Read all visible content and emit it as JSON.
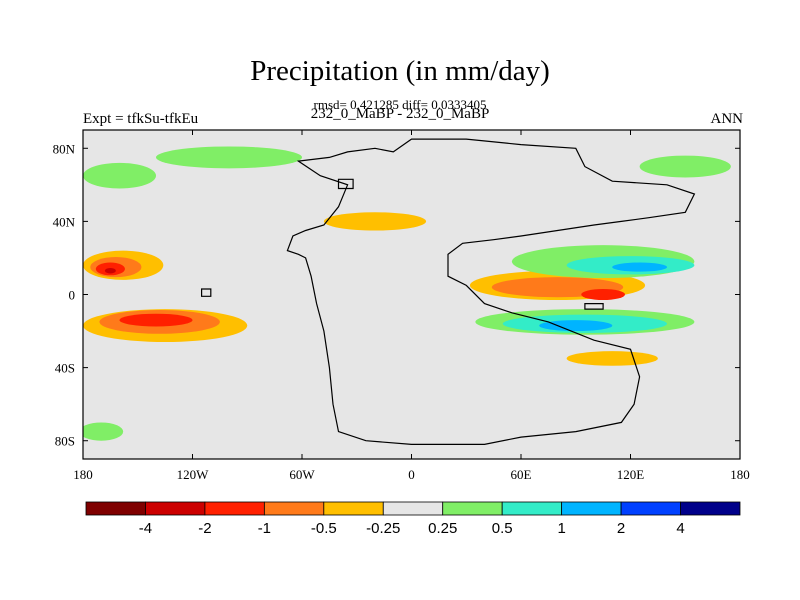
{
  "title": "Precipitation (in mm/day)",
  "stats": "rmsd= 0.421285 diff= 0.0333405",
  "subtitle": "232_0_MaBP - 232_0_MaBP",
  "left_label": "Expt = tfkSu-tfkEu",
  "right_label": "ANN",
  "colors": {
    "background_field": "#e6e6e6",
    "continent_outline": "#000000"
  },
  "chart_data": {
    "type": "heatmap",
    "projection": "cylindrical equidistant",
    "xlim": [
      -180,
      180
    ],
    "ylim": [
      -90,
      90
    ],
    "x_ticks": [
      {
        "value": -180,
        "label": "180"
      },
      {
        "value": -120,
        "label": "120W"
      },
      {
        "value": -60,
        "label": "60W"
      },
      {
        "value": 0,
        "label": "0"
      },
      {
        "value": 60,
        "label": "60E"
      },
      {
        "value": 120,
        "label": "120E"
      },
      {
        "value": 180,
        "label": "180"
      }
    ],
    "y_ticks": [
      {
        "value": 80,
        "label": "80N"
      },
      {
        "value": 40,
        "label": "40N"
      },
      {
        "value": 0,
        "label": "0"
      },
      {
        "value": -40,
        "label": "40S"
      },
      {
        "value": -80,
        "label": "80S"
      }
    ],
    "colorbar": {
      "levels": [
        "-4",
        "-2",
        "-1",
        "-0.5",
        "-0.25",
        "0.25",
        "0.5",
        "1",
        "2",
        "4"
      ],
      "colors": [
        "#7f0000",
        "#cc0000",
        "#ff2000",
        "#ff7a1a",
        "#ffbf00",
        "#e6e6e6",
        "#80ee66",
        "#33ecc8",
        "#00b4ff",
        "#0040ff",
        "#00008a"
      ]
    },
    "regions": [
      {
        "bin": 4,
        "lon": -158,
        "lat": 16,
        "rlon": 22,
        "rlat": 8
      },
      {
        "bin": 3,
        "lon": -162,
        "lat": 15,
        "rlon": 14,
        "rlat": 5.5
      },
      {
        "bin": 2,
        "lon": -165,
        "lat": 14,
        "rlon": 8,
        "rlat": 3.5
      },
      {
        "bin": 1,
        "lon": -165,
        "lat": 13,
        "rlon": 3,
        "rlat": 1.5
      },
      {
        "bin": 4,
        "lon": -135,
        "lat": -17,
        "rlon": 45,
        "rlat": 9
      },
      {
        "bin": 3,
        "lon": -138,
        "lat": -15,
        "rlon": 33,
        "rlat": 6.5
      },
      {
        "bin": 2,
        "lon": -140,
        "lat": -14,
        "rlon": 20,
        "rlat": 3.5
      },
      {
        "bin": 4,
        "lon": 80,
        "lat": 5,
        "rlon": 48,
        "rlat": 8
      },
      {
        "bin": 3,
        "lon": 80,
        "lat": 4,
        "rlon": 36,
        "rlat": 5.5
      },
      {
        "bin": 2,
        "lon": 105,
        "lat": 0,
        "rlon": 12,
        "rlat": 3
      },
      {
        "bin": 6,
        "lon": 95,
        "lat": -15,
        "rlon": 60,
        "rlat": 7
      },
      {
        "bin": 7,
        "lon": 95,
        "lat": -16,
        "rlon": 45,
        "rlat": 5
      },
      {
        "bin": 8,
        "lon": 90,
        "lat": -17,
        "rlon": 20,
        "rlat": 3
      },
      {
        "bin": 6,
        "lon": 105,
        "lat": 18,
        "rlon": 50,
        "rlat": 9
      },
      {
        "bin": 7,
        "lon": 120,
        "lat": 16,
        "rlon": 35,
        "rlat": 5
      },
      {
        "bin": 8,
        "lon": 125,
        "lat": 15,
        "rlon": 15,
        "rlat": 2.5
      },
      {
        "bin": 6,
        "lon": -160,
        "lat": 65,
        "rlon": 20,
        "rlat": 7
      },
      {
        "bin": 6,
        "lon": -100,
        "lat": 75,
        "rlon": 40,
        "rlat": 6
      },
      {
        "bin": 6,
        "lon": -170,
        "lat": -75,
        "rlon": 12,
        "rlat": 5
      },
      {
        "bin": 6,
        "lon": 150,
        "lat": 70,
        "rlon": 25,
        "rlat": 6
      },
      {
        "bin": 4,
        "lon": -20,
        "lat": 40,
        "rlon": 28,
        "rlat": 5
      },
      {
        "bin": 4,
        "lon": 110,
        "lat": -35,
        "rlon": 25,
        "rlat": 4
      }
    ]
  }
}
